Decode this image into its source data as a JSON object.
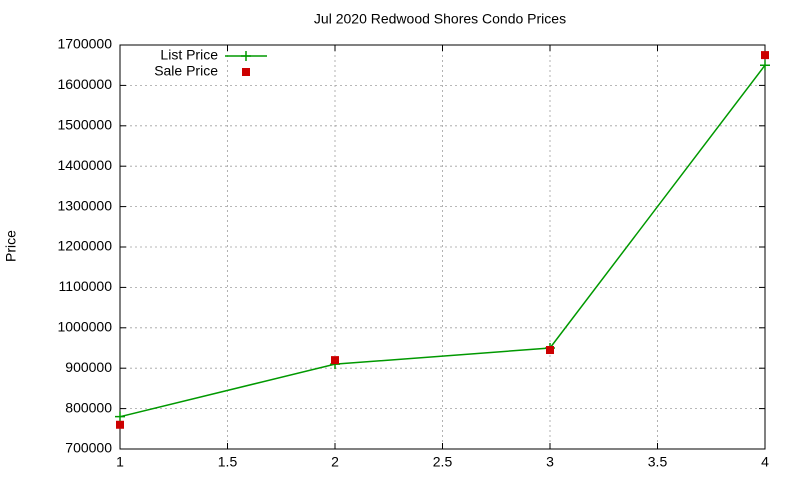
{
  "chart_data": {
    "type": "line",
    "title": "Jul 2020 Redwood Shores Condo Prices",
    "y_label": "Price",
    "x": [
      1,
      2,
      3,
      4
    ],
    "series": [
      {
        "name": "List Price",
        "color": "#009900",
        "marker": "plus",
        "line": true,
        "values": [
          780000,
          910000,
          950000,
          1650000
        ]
      },
      {
        "name": "Sale Price",
        "color": "#cc0000",
        "marker": "square",
        "line": false,
        "values": [
          760000,
          920000,
          945000,
          1675000
        ]
      }
    ],
    "xlim": [
      1,
      4
    ],
    "xticks": [
      1,
      1.5,
      2,
      2.5,
      3,
      3.5,
      4
    ],
    "ylim": [
      700000,
      1700000
    ],
    "yticks": [
      700000,
      800000,
      900000,
      1000000,
      1100000,
      1200000,
      1300000,
      1400000,
      1500000,
      1600000,
      1700000
    ],
    "grid": true,
    "legend": "top-left"
  }
}
